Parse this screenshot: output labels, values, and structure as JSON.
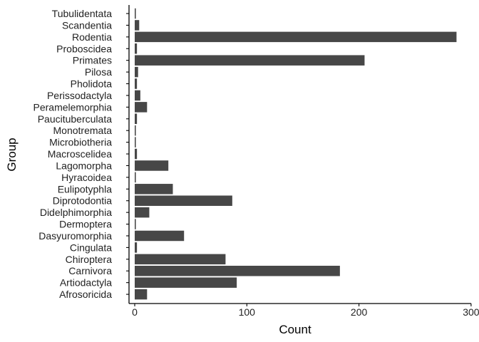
{
  "chart_data": {
    "type": "bar",
    "orientation": "horizontal",
    "xlabel": "Count",
    "ylabel": "Group",
    "xlim": [
      0,
      300
    ],
    "x_ticks": [
      0,
      100,
      200,
      300
    ],
    "grid": false,
    "bar_color": "#474747",
    "categories": [
      "Tubulidentata",
      "Scandentia",
      "Rodentia",
      "Proboscidea",
      "Primates",
      "Pilosa",
      "Pholidota",
      "Perissodactyla",
      "Peramelemorphia",
      "Paucituberculata",
      "Monotremata",
      "Microbiotheria",
      "Macroscelidea",
      "Lagomorpha",
      "Hyracoidea",
      "Eulipotyphla",
      "Diprotodontia",
      "Didelphimorphia",
      "Dermoptera",
      "Dasyuromorphia",
      "Cingulata",
      "Chiroptera",
      "Carnivora",
      "Artiodactyla",
      "Afrosoricida"
    ],
    "values": [
      1,
      4,
      287,
      2,
      205,
      3,
      2,
      5,
      11,
      2,
      1,
      1,
      2,
      30,
      1,
      34,
      87,
      13,
      1,
      44,
      2,
      81,
      183,
      91,
      11
    ]
  }
}
